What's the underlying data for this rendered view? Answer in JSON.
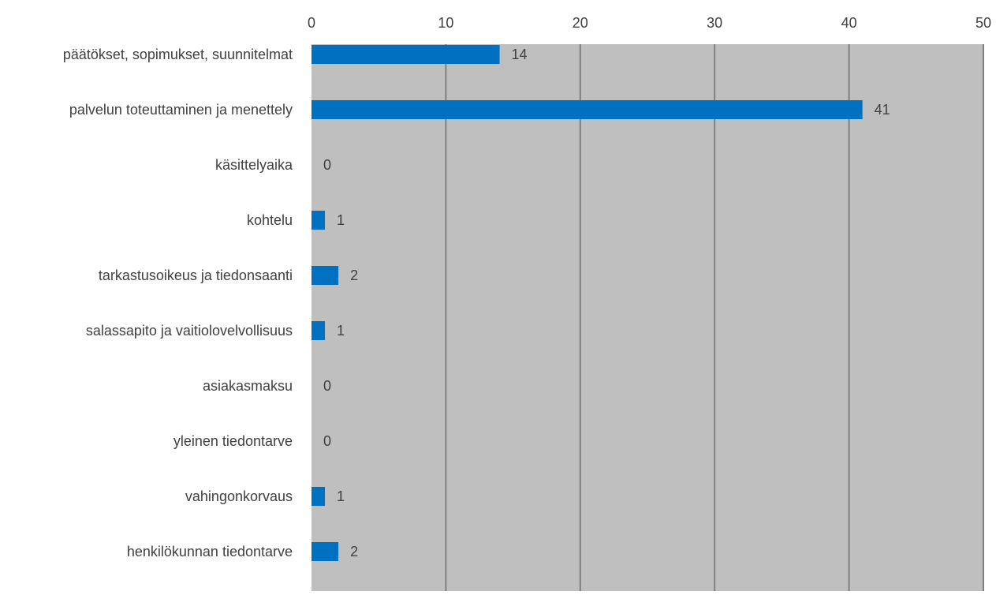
{
  "chart_data": {
    "type": "bar",
    "orientation": "horizontal",
    "title": "",
    "xlabel": "",
    "ylabel": "",
    "xlim": [
      0,
      50
    ],
    "x_ticks": [
      0,
      10,
      20,
      30,
      40,
      50
    ],
    "x_tick_labels": [
      "0",
      "10",
      "20",
      "30",
      "40",
      "50"
    ],
    "x_axis_position": "top",
    "grid": true,
    "legend": "none",
    "categories": [
      "päätökset, sopimukset, suunnitelmat",
      "palvelun toteuttaminen ja menettely",
      "käsittelyaika",
      "kohtelu",
      "tarkastusoikeus ja tiedonsaanti",
      "salassapito ja vaitiolovelvollisuus",
      "asiakasmaksu",
      "yleinen tiedontarve",
      "vahingonkorvaus",
      "henkilökunnan tiedontarve"
    ],
    "values": [
      14,
      41,
      0,
      1,
      2,
      1,
      0,
      0,
      1,
      2
    ],
    "data_labels": [
      "14",
      "41",
      "0",
      "1",
      "2",
      "1",
      "0",
      "0",
      "1",
      "2"
    ],
    "colors": {
      "bar": "#0070C0",
      "plot_background": "#BFBFBF",
      "gridline": "#7F7F7F",
      "text": "#404040"
    }
  }
}
